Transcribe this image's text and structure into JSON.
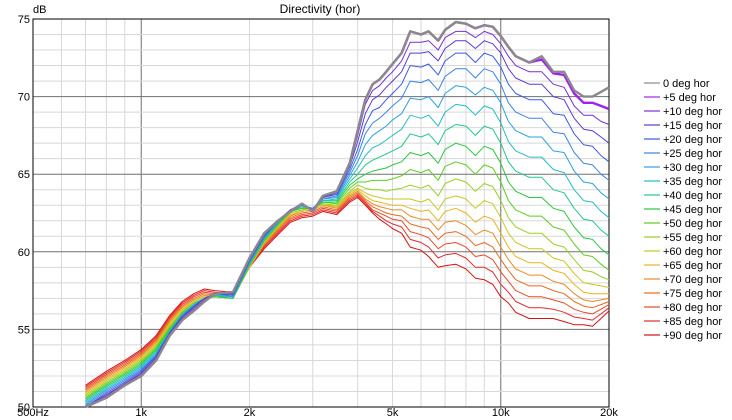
{
  "chart_data": {
    "type": "line",
    "title": "Directivity (hor)",
    "ylabel": "dB",
    "xlabel": "",
    "x_scale": "log",
    "xlim": [
      500,
      20000
    ],
    "ylim": [
      50,
      75
    ],
    "x_tick_values": [
      500,
      1000,
      2000,
      5000,
      10000,
      20000
    ],
    "x_tick_labels": [
      "500Hz",
      "1k",
      "2k",
      "5k",
      "10k",
      "20k"
    ],
    "y_tick_values": [
      50,
      55,
      60,
      65,
      70,
      75
    ],
    "y_tick_labels": [
      "50",
      "55",
      "60",
      "65",
      "70",
      "75"
    ],
    "grid": true,
    "legend_position": "right",
    "x": [
      700,
      800,
      900,
      1000,
      1100,
      1200,
      1300,
      1400,
      1500,
      1600,
      1800,
      2000,
      2200,
      2400,
      2600,
      2800,
      3000,
      3200,
      3500,
      3800,
      4000,
      4200,
      4400,
      4600,
      4800,
      5000,
      5300,
      5600,
      6000,
      6300,
      6700,
      7000,
      7500,
      8000,
      8500,
      9000,
      9500,
      10000,
      10500,
      11000,
      12000,
      13000,
      14000,
      15000,
      16000,
      17000,
      18000,
      19000,
      20000
    ],
    "series": [
      {
        "name": "0 deg hor",
        "color": "#8a8a8a",
        "values": [
          49.8,
          50.6,
          51.4,
          52.0,
          53.0,
          54.6,
          55.6,
          56.2,
          56.8,
          57.3,
          57.4,
          59.6,
          61.2,
          62.0,
          62.6,
          63.1,
          62.6,
          63.6,
          63.9,
          65.7,
          67.8,
          69.8,
          70.8,
          71.1,
          71.6,
          72.1,
          72.8,
          74.2,
          74.0,
          74.2,
          73.6,
          74.3,
          74.8,
          74.7,
          74.4,
          74.6,
          74.5,
          73.9,
          73.2,
          72.6,
          72.2,
          72.6,
          71.6,
          71.6,
          70.4,
          70.0,
          70.0,
          70.3,
          70.6
        ]
      },
      {
        "name": "+5 deg hor",
        "color": "#a020f0",
        "values": [
          49.8,
          50.6,
          51.4,
          52.0,
          53.0,
          54.6,
          55.6,
          56.2,
          56.8,
          57.3,
          57.4,
          59.6,
          61.2,
          62.0,
          62.6,
          63.1,
          62.6,
          63.6,
          63.9,
          65.7,
          67.8,
          69.8,
          70.8,
          71.1,
          71.6,
          72.1,
          72.8,
          74.2,
          74.0,
          74.2,
          73.6,
          74.3,
          74.8,
          74.7,
          74.4,
          74.6,
          74.5,
          73.9,
          73.2,
          72.6,
          72.2,
          72.4,
          71.5,
          71.4,
          70.2,
          69.6,
          69.6,
          69.4,
          69.2
        ]
      },
      {
        "name": "+10 deg hor",
        "color": "#7a2ed6",
        "values": [
          49.9,
          50.7,
          51.5,
          52.1,
          53.1,
          54.7,
          55.7,
          56.3,
          56.9,
          57.3,
          57.3,
          59.5,
          61.2,
          62.0,
          62.7,
          63.1,
          62.7,
          63.6,
          63.9,
          65.6,
          67.5,
          69.5,
          70.4,
          70.7,
          71.2,
          71.6,
          72.3,
          73.5,
          73.5,
          73.6,
          73.0,
          73.8,
          74.2,
          74.2,
          73.8,
          74.2,
          74.0,
          73.4,
          72.6,
          72.0,
          71.6,
          71.6,
          70.8,
          70.6,
          69.4,
          68.8,
          68.8,
          68.4,
          68.2
        ]
      },
      {
        "name": "+15 deg hor",
        "color": "#5a3ad0",
        "values": [
          50.0,
          50.8,
          51.5,
          52.2,
          53.2,
          54.7,
          55.8,
          56.4,
          57.0,
          57.3,
          57.3,
          59.5,
          61.1,
          62.0,
          62.7,
          63.0,
          62.7,
          63.5,
          63.8,
          65.5,
          67.1,
          68.9,
          69.8,
          70.1,
          70.6,
          71.0,
          71.6,
          72.8,
          72.8,
          72.9,
          72.3,
          73.1,
          73.6,
          73.6,
          73.1,
          73.6,
          73.4,
          72.8,
          71.8,
          71.2,
          70.8,
          70.8,
          70.0,
          69.8,
          68.6,
          67.9,
          67.8,
          67.4,
          67.0
        ]
      },
      {
        "name": "+20 deg hor",
        "color": "#3a5adf",
        "values": [
          50.0,
          50.9,
          51.6,
          52.3,
          53.3,
          54.8,
          55.8,
          56.5,
          57.0,
          57.3,
          57.2,
          59.4,
          61.0,
          62.0,
          62.7,
          63.0,
          62.7,
          63.5,
          63.7,
          65.3,
          66.6,
          68.2,
          69.1,
          69.3,
          69.8,
          70.2,
          70.8,
          72.0,
          71.9,
          72.1,
          71.4,
          72.3,
          72.8,
          72.8,
          72.2,
          72.8,
          72.6,
          71.9,
          70.8,
          70.2,
          69.8,
          69.8,
          68.9,
          68.8,
          67.6,
          66.9,
          66.8,
          66.2,
          65.8
        ]
      },
      {
        "name": "+25 deg hor",
        "color": "#3a84e6",
        "values": [
          50.1,
          51.0,
          51.7,
          52.4,
          53.3,
          54.8,
          55.9,
          56.5,
          57.0,
          57.3,
          57.2,
          59.4,
          61.0,
          61.9,
          62.7,
          63.0,
          62.8,
          63.4,
          63.6,
          65.1,
          66.2,
          67.6,
          68.3,
          68.6,
          69.0,
          69.4,
          69.9,
          71.0,
          70.9,
          71.1,
          70.4,
          71.3,
          71.8,
          71.8,
          71.2,
          71.8,
          71.6,
          70.8,
          69.6,
          69.0,
          68.6,
          68.6,
          67.7,
          67.6,
          66.4,
          65.7,
          65.6,
          65.0,
          64.6
        ]
      },
      {
        "name": "+30 deg hor",
        "color": "#2aa2e0",
        "values": [
          50.2,
          51.1,
          51.8,
          52.5,
          53.4,
          54.8,
          55.9,
          56.5,
          57.0,
          57.3,
          57.1,
          59.3,
          60.9,
          61.9,
          62.7,
          63.0,
          62.8,
          63.4,
          63.5,
          64.9,
          65.8,
          66.9,
          67.5,
          67.8,
          68.1,
          68.5,
          68.9,
          69.9,
          69.8,
          70.0,
          69.3,
          70.2,
          70.7,
          70.6,
          70.1,
          70.6,
          70.4,
          69.6,
          68.4,
          67.8,
          67.4,
          67.4,
          66.5,
          66.4,
          65.2,
          64.5,
          64.4,
          63.8,
          63.4
        ]
      },
      {
        "name": "+35 deg hor",
        "color": "#22bcc8",
        "values": [
          50.3,
          51.2,
          51.9,
          52.6,
          53.5,
          54.8,
          55.9,
          56.6,
          57.0,
          57.2,
          57.1,
          59.3,
          60.9,
          61.9,
          62.7,
          62.9,
          62.8,
          63.3,
          63.4,
          64.7,
          65.4,
          66.2,
          66.7,
          66.9,
          67.2,
          67.5,
          67.9,
          68.8,
          68.6,
          68.8,
          68.1,
          69.0,
          69.5,
          69.4,
          68.8,
          69.4,
          69.2,
          68.3,
          67.1,
          66.5,
          66.1,
          66.1,
          65.3,
          65.1,
          64.0,
          63.3,
          63.2,
          62.6,
          62.2
        ]
      },
      {
        "name": "+40 deg hor",
        "color": "#20c890",
        "values": [
          50.4,
          51.3,
          52.0,
          52.7,
          53.6,
          54.9,
          56.0,
          56.6,
          57.0,
          57.2,
          57.0,
          59.2,
          60.8,
          61.8,
          62.6,
          62.9,
          62.8,
          63.3,
          63.3,
          64.5,
          65.0,
          65.6,
          65.9,
          66.1,
          66.3,
          66.5,
          66.8,
          67.6,
          67.4,
          67.6,
          66.9,
          67.8,
          68.2,
          68.1,
          67.5,
          68.1,
          67.9,
          67.0,
          65.8,
          65.2,
          64.8,
          64.8,
          64.0,
          63.8,
          62.8,
          62.1,
          62.0,
          61.4,
          61.0
        ]
      },
      {
        "name": "+45 deg hor",
        "color": "#28c840",
        "values": [
          50.5,
          51.4,
          52.1,
          52.8,
          53.7,
          55.0,
          56.0,
          56.6,
          57.0,
          57.1,
          57.0,
          59.2,
          60.8,
          61.8,
          62.6,
          62.8,
          62.8,
          63.2,
          63.2,
          64.3,
          64.7,
          65.0,
          65.2,
          65.3,
          65.4,
          65.6,
          65.8,
          66.4,
          66.2,
          66.4,
          65.7,
          66.6,
          67.0,
          66.8,
          66.2,
          66.8,
          66.6,
          65.7,
          64.5,
          63.9,
          63.5,
          63.5,
          62.8,
          62.6,
          61.6,
          60.9,
          60.8,
          60.2,
          59.8
        ]
      },
      {
        "name": "+50 deg hor",
        "color": "#5ace20",
        "values": [
          50.6,
          51.5,
          52.2,
          52.9,
          53.8,
          55.1,
          56.1,
          56.7,
          57.0,
          57.1,
          57.0,
          59.1,
          60.7,
          61.7,
          62.6,
          62.8,
          62.8,
          63.2,
          63.1,
          64.1,
          64.5,
          64.5,
          64.6,
          64.6,
          64.6,
          64.7,
          64.9,
          65.3,
          65.1,
          65.3,
          64.6,
          65.5,
          65.8,
          65.6,
          65.0,
          65.6,
          65.4,
          64.5,
          63.3,
          62.7,
          62.3,
          62.3,
          61.6,
          61.4,
          60.5,
          59.8,
          59.7,
          59.2,
          58.8
        ]
      },
      {
        "name": "+55 deg hor",
        "color": "#9ad020",
        "values": [
          50.7,
          51.6,
          52.3,
          53.0,
          53.9,
          55.2,
          56.1,
          56.7,
          57.0,
          57.1,
          57.0,
          59.1,
          60.7,
          61.7,
          62.5,
          62.7,
          62.8,
          63.1,
          63.0,
          63.9,
          64.3,
          64.1,
          64.0,
          64.0,
          63.9,
          64.0,
          64.1,
          64.3,
          64.1,
          64.3,
          63.6,
          64.4,
          64.7,
          64.5,
          63.9,
          64.4,
          64.2,
          63.3,
          62.2,
          61.6,
          61.2,
          61.2,
          60.5,
          60.3,
          59.5,
          58.8,
          58.7,
          58.4,
          58.2
        ]
      },
      {
        "name": "+60 deg hor",
        "color": "#c8c820",
        "values": [
          50.8,
          51.7,
          52.4,
          53.1,
          54.0,
          55.3,
          56.2,
          56.8,
          57.1,
          57.1,
          57.0,
          59.1,
          60.6,
          61.6,
          62.5,
          62.7,
          62.8,
          63.1,
          62.9,
          63.8,
          64.1,
          63.8,
          63.6,
          63.5,
          63.4,
          63.4,
          63.4,
          63.4,
          63.2,
          63.4,
          62.7,
          63.4,
          63.6,
          63.4,
          62.8,
          63.3,
          63.1,
          62.2,
          61.2,
          60.6,
          60.2,
          60.2,
          59.6,
          59.4,
          58.6,
          58.0,
          57.9,
          57.8,
          57.7
        ]
      },
      {
        "name": "+65 deg hor",
        "color": "#e8b420",
        "values": [
          50.9,
          51.8,
          52.5,
          53.2,
          54.1,
          55.4,
          56.3,
          56.8,
          57.1,
          57.1,
          57.0,
          59.0,
          60.6,
          61.6,
          62.4,
          62.6,
          62.7,
          63.0,
          62.9,
          63.7,
          64.0,
          63.6,
          63.3,
          63.2,
          63.1,
          63.0,
          63.0,
          62.8,
          62.6,
          62.7,
          62.0,
          62.6,
          62.8,
          62.5,
          61.9,
          62.3,
          62.1,
          61.2,
          60.3,
          59.7,
          59.3,
          59.3,
          58.8,
          58.6,
          57.9,
          57.4,
          57.3,
          57.3,
          57.3
        ]
      },
      {
        "name": "+70 deg hor",
        "color": "#e88a20",
        "values": [
          51.0,
          51.9,
          52.6,
          53.3,
          54.2,
          55.5,
          56.4,
          56.9,
          57.2,
          57.1,
          57.0,
          59.0,
          60.5,
          61.5,
          62.3,
          62.6,
          62.7,
          63.0,
          62.8,
          63.6,
          63.9,
          63.4,
          63.1,
          62.9,
          62.8,
          62.7,
          62.7,
          62.3,
          62.1,
          62.1,
          61.4,
          61.9,
          62.0,
          61.7,
          61.1,
          61.4,
          61.2,
          60.3,
          59.5,
          58.9,
          58.5,
          58.5,
          58.1,
          57.9,
          57.3,
          56.9,
          56.8,
          56.9,
          57.0
        ]
      },
      {
        "name": "+75 deg hor",
        "color": "#e86a20",
        "values": [
          51.1,
          52.0,
          52.7,
          53.4,
          54.3,
          55.6,
          56.5,
          57.0,
          57.3,
          57.2,
          57.1,
          59.0,
          60.5,
          61.4,
          62.2,
          62.5,
          62.6,
          62.9,
          62.7,
          63.5,
          63.8,
          63.3,
          62.9,
          62.7,
          62.5,
          62.4,
          62.3,
          61.8,
          61.6,
          61.5,
          60.8,
          61.2,
          61.3,
          61.0,
          60.4,
          60.6,
          60.3,
          59.5,
          58.8,
          58.2,
          57.8,
          57.8,
          57.5,
          57.3,
          56.8,
          56.5,
          56.4,
          56.6,
          56.8
        ]
      },
      {
        "name": "+80 deg hor",
        "color": "#e84a28",
        "values": [
          51.2,
          52.1,
          52.8,
          53.5,
          54.4,
          55.7,
          56.6,
          57.1,
          57.4,
          57.3,
          57.2,
          59.0,
          60.4,
          61.3,
          62.1,
          62.4,
          62.5,
          62.8,
          62.6,
          63.4,
          63.7,
          63.2,
          62.7,
          62.5,
          62.3,
          62.1,
          62.0,
          61.3,
          61.1,
          60.9,
          60.2,
          60.5,
          60.6,
          60.3,
          59.7,
          59.8,
          59.5,
          58.7,
          58.1,
          57.5,
          57.1,
          57.1,
          56.9,
          56.7,
          56.3,
          56.1,
          56.0,
          56.3,
          56.6
        ]
      },
      {
        "name": "+85 deg hor",
        "color": "#e02a30",
        "values": [
          51.3,
          52.2,
          52.9,
          53.6,
          54.5,
          55.8,
          56.7,
          57.2,
          57.5,
          57.4,
          57.3,
          59.0,
          60.3,
          61.2,
          62.0,
          62.3,
          62.4,
          62.7,
          62.5,
          63.3,
          63.6,
          63.1,
          62.6,
          62.3,
          62.0,
          61.8,
          61.6,
          60.8,
          60.6,
          60.3,
          59.6,
          59.8,
          59.9,
          59.6,
          59.0,
          59.0,
          58.7,
          57.9,
          57.4,
          56.8,
          56.4,
          56.4,
          56.3,
          56.1,
          55.8,
          55.7,
          55.6,
          56.0,
          56.4
        ]
      },
      {
        "name": "+90 deg hor",
        "color": "#d81010",
        "values": [
          51.4,
          52.3,
          53.0,
          53.7,
          54.6,
          55.9,
          56.8,
          57.3,
          57.6,
          57.5,
          57.4,
          59.0,
          60.2,
          61.1,
          61.9,
          62.2,
          62.3,
          62.6,
          62.4,
          63.2,
          63.5,
          63.0,
          62.5,
          62.1,
          61.8,
          61.5,
          61.2,
          60.3,
          60.1,
          59.7,
          59.0,
          59.1,
          59.2,
          58.9,
          58.3,
          58.2,
          57.9,
          57.1,
          56.7,
          56.1,
          55.7,
          55.7,
          55.7,
          55.5,
          55.3,
          55.3,
          55.2,
          55.7,
          56.2
        ]
      }
    ]
  }
}
